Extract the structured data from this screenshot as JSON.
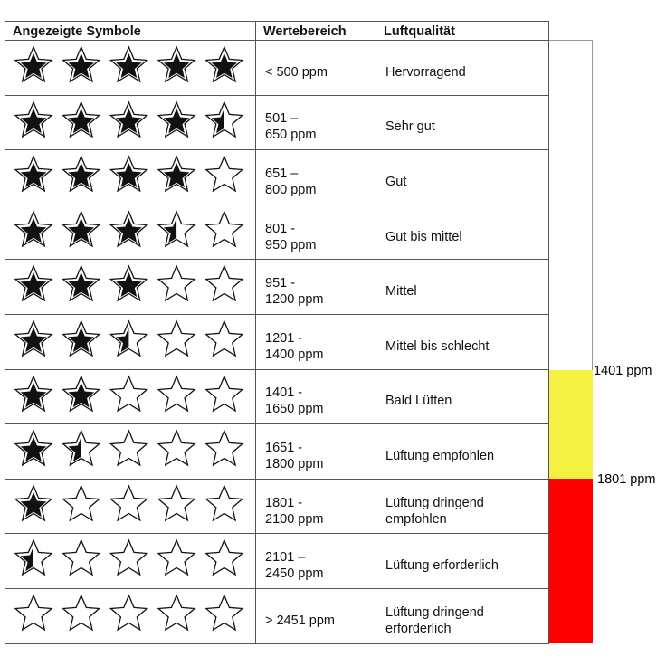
{
  "table": {
    "header": [
      "Angezeigte Symbole",
      "Wertebereich",
      "Luftqualität"
    ],
    "rows": [
      {
        "stars": 5,
        "range": [
          "< 500 ppm"
        ],
        "quality": "Hervorragend"
      },
      {
        "stars": 4.5,
        "range": [
          "501 –",
          "650 ppm"
        ],
        "quality": "Sehr gut"
      },
      {
        "stars": 4,
        "range": [
          "651 –",
          "800 ppm"
        ],
        "quality": "Gut"
      },
      {
        "stars": 3.5,
        "range": [
          "801 -",
          "950 ppm"
        ],
        "quality": "Gut bis mittel"
      },
      {
        "stars": 3,
        "range": [
          "951 -",
          "1200 ppm"
        ],
        "quality": "Mittel"
      },
      {
        "stars": 2.5,
        "range": [
          "1201 -",
          "1400 ppm"
        ],
        "quality": "Mittel bis schlecht"
      },
      {
        "stars": 2,
        "range": [
          "1401 -",
          "1650 ppm"
        ],
        "quality": "Bald Lüften"
      },
      {
        "stars": 1.5,
        "range": [
          "1651 -",
          "1800 ppm"
        ],
        "quality": "Lüftung empfohlen"
      },
      {
        "stars": 1,
        "range": [
          "1801 -",
          "2100 ppm"
        ],
        "quality": "Lüftung dringend empfohlen"
      },
      {
        "stars": 0.5,
        "range": [
          "2101 –",
          "2450 ppm"
        ],
        "quality": "Lüftung erforderlich"
      },
      {
        "stars": 0,
        "range": [
          "> 2451 ppm"
        ],
        "quality": "Lüftung dringend erforderlich"
      }
    ]
  },
  "scale": {
    "yellow_label": "1401 ppm",
    "red_label": "1801 ppm"
  }
}
